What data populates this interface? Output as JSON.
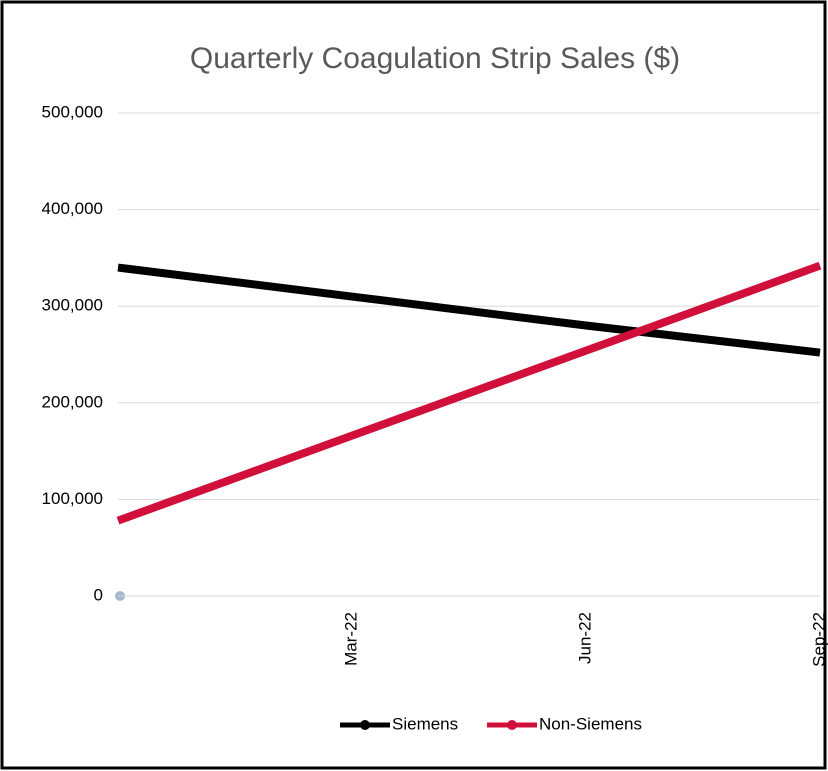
{
  "chart_data": {
    "type": "line",
    "title": "Quarterly Coagulation Strip Sales ($)",
    "categories": [
      null,
      "Mar-22",
      "Jun-22",
      "Sep-22"
    ],
    "series": [
      {
        "name": "Siemens",
        "color": "#000000",
        "values": [
          340000,
          310000,
          280000,
          252000
        ]
      },
      {
        "name": "Non-Siemens",
        "color": "#d0103a",
        "values": [
          78000,
          166000,
          254000,
          342000
        ]
      }
    ],
    "ylim": [
      0,
      500000
    ],
    "yticks": [
      0,
      {
        "value": 100000,
        "label": "100,000"
      },
      {
        "value": 200000,
        "label": "200,000"
      },
      {
        "value": 300000,
        "label": "300,000"
      },
      {
        "value": 400000,
        "label": "400,000"
      },
      {
        "value": 500000,
        "label": "500,000"
      }
    ],
    "grid": true,
    "legend": "bottom"
  }
}
